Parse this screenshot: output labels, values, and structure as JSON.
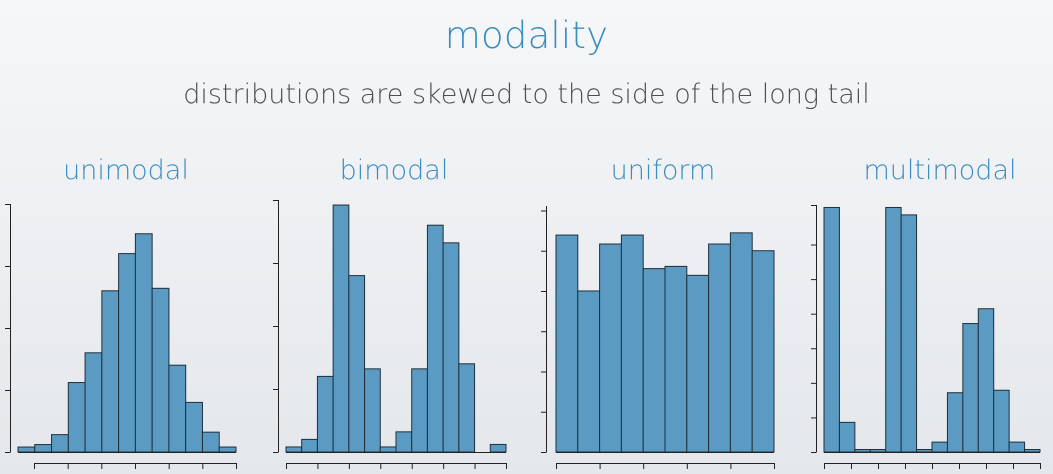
{
  "slide": {
    "title": "modality",
    "subtitle": "distributions are skewed to the side of the long tail"
  },
  "colors": {
    "title": "#3a8dc0",
    "subtitle": "#4e4e4e",
    "bar_fill": "#5b9bc3",
    "bar_edge": "#1f2f3a"
  },
  "chart_data": [
    {
      "type": "bar",
      "title": "unimodal",
      "values": [
        0.02,
        0.03,
        0.07,
        0.28,
        0.4,
        0.65,
        0.8,
        0.88,
        0.66,
        0.35,
        0.2,
        0.08,
        0.02
      ],
      "ylim": [
        0,
        1
      ],
      "yticks": [
        0,
        0.25,
        0.5,
        0.75,
        1
      ],
      "xtick_count": 7
    },
    {
      "type": "bar",
      "title": "bimodal",
      "values": [
        0.02,
        0.05,
        0.3,
        0.98,
        0.7,
        0.33,
        0.02,
        0.08,
        0.33,
        0.9,
        0.83,
        0.35,
        0,
        0.03
      ],
      "ylim": [
        0,
        1
      ],
      "yticks": [
        0,
        0.25,
        0.5,
        0.75,
        1
      ],
      "xtick_count": 8
    },
    {
      "type": "bar",
      "title": "uniform",
      "values": [
        0.97,
        0.72,
        0.93,
        0.97,
        0.82,
        0.83,
        0.79,
        0.93,
        0.98,
        0.9
      ],
      "ylim": [
        0,
        1.1
      ],
      "yticks": [
        0,
        0.18,
        0.36,
        0.54,
        0.72,
        0.9,
        1.08
      ],
      "xtick_count": 6
    },
    {
      "type": "bar",
      "title": "multimodal",
      "values": [
        0.99,
        0.12,
        0.01,
        0.01,
        0.99,
        0.96,
        0.01,
        0.04,
        0.24,
        0.52,
        0.58,
        0.25,
        0.04,
        0.01
      ],
      "ylim": [
        0,
        1
      ],
      "yticks": [
        0,
        0.14,
        0.28,
        0.42,
        0.56,
        0.7,
        0.84,
        1
      ],
      "xtick_count": 9
    }
  ]
}
